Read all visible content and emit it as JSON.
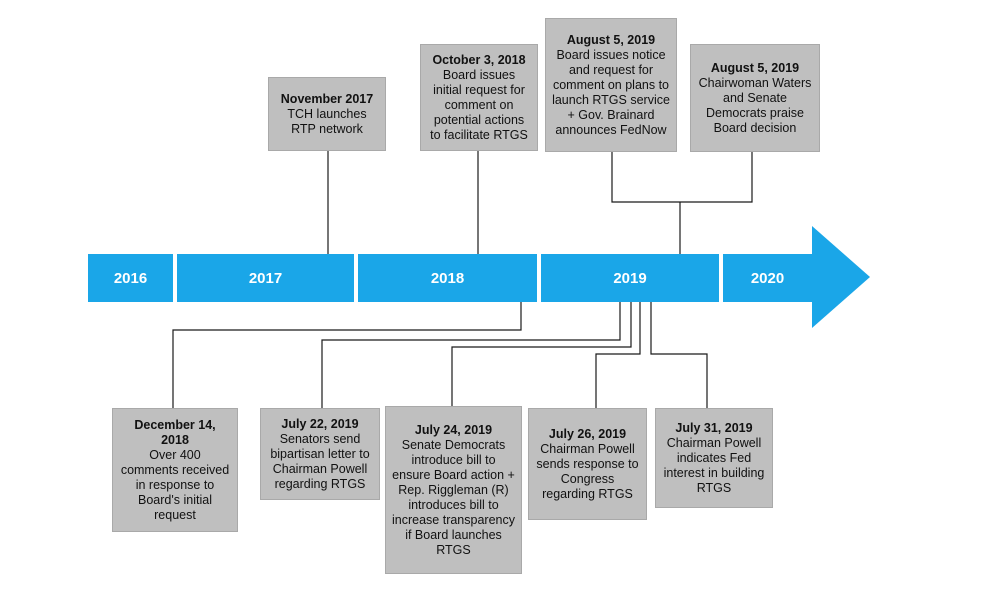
{
  "colors": {
    "timeline": "#1aa6e8",
    "event_box": "#bfbfbf",
    "connector": "#1a1a1a"
  },
  "timeline": {
    "years": [
      "2016",
      "2017",
      "2018",
      "2019",
      "2020"
    ]
  },
  "events_above": [
    {
      "date": "November 2017",
      "text": "TCH launches RTP network"
    },
    {
      "date": "October 3, 2018",
      "text": "Board issues initial request for comment on potential actions to facilitate RTGS"
    },
    {
      "date": "August 5, 2019",
      "text": "Board issues notice and request for comment on plans to launch RTGS service + Gov. Brainard announces FedNow"
    },
    {
      "date": "August 5, 2019",
      "text": "Chairwoman Waters and Senate Democrats praise Board decision"
    }
  ],
  "events_below": [
    {
      "date": "December 14, 2018",
      "text": "Over 400 comments received in response to Board's initial request"
    },
    {
      "date": "July 22, 2019",
      "text": "Senators send bipartisan letter to Chairman Powell regarding RTGS"
    },
    {
      "date": "July 24, 2019",
      "text": "Senate Democrats introduce bill to ensure Board action + Rep. Riggleman (R) introduces bill to increase transparency if Board launches RTGS"
    },
    {
      "date": "July 26, 2019",
      "text": "Chairman Powell sends response to Congress regarding RTGS"
    },
    {
      "date": "July 31, 2019",
      "text": "Chairman Powell indicates Fed interest in building RTGS"
    }
  ]
}
